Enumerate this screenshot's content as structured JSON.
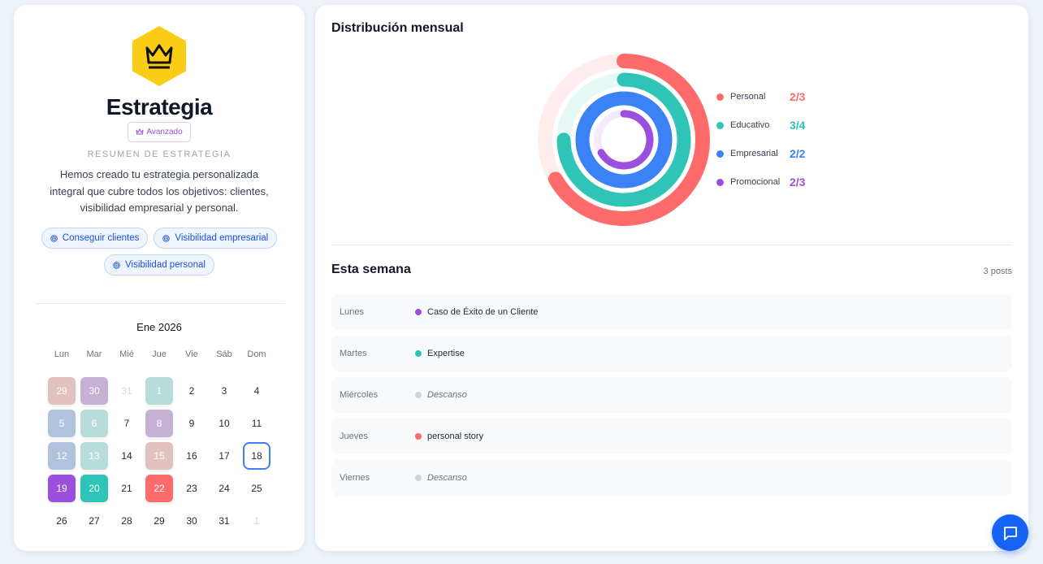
{
  "strategy": {
    "title": "Estrategia",
    "icon": "crown-icon",
    "level": "Avanzado",
    "summary_label": "RESUMEN DE ESTRATEGIA",
    "summary": "Hemos creado tu estrategia personalizada integral que cubre todos los objetivos: clientes, visibilidad empresarial y personal.",
    "goals": [
      "Conseguir clientes",
      "Visibilidad empresarial",
      "Visibilidad personal"
    ]
  },
  "calendar": {
    "month": "Ene 2026",
    "weekdays": [
      "Lun",
      "Mar",
      "Mié",
      "Jue",
      "Vie",
      "Sáb",
      "Dom"
    ],
    "weeks": [
      [
        {
          "d": "29",
          "c": "#e2c1c1"
        },
        {
          "d": "30",
          "c": "#c4b1d3"
        },
        {
          "d": "31",
          "muted": true
        },
        {
          "d": "1",
          "c": "#b8dcd8"
        },
        {
          "d": "2"
        },
        {
          "d": "3"
        },
        {
          "d": "4"
        }
      ],
      [
        {
          "d": "5",
          "c": "#b0c2dc"
        },
        {
          "d": "6",
          "c": "#b8dcd8"
        },
        {
          "d": "7"
        },
        {
          "d": "8",
          "c": "#c4b1d3"
        },
        {
          "d": "9"
        },
        {
          "d": "10"
        },
        {
          "d": "11"
        }
      ],
      [
        {
          "d": "12",
          "c": "#b0c2dc"
        },
        {
          "d": "13",
          "c": "#b8dcd8"
        },
        {
          "d": "14"
        },
        {
          "d": "15",
          "c": "#e2c1c1"
        },
        {
          "d": "16"
        },
        {
          "d": "17"
        },
        {
          "d": "18",
          "today": true
        }
      ],
      [
        {
          "d": "19",
          "c": "#9b4fdd"
        },
        {
          "d": "20",
          "c": "#2ec4b6"
        },
        {
          "d": "21"
        },
        {
          "d": "22",
          "c": "#ff6b6b"
        },
        {
          "d": "23"
        },
        {
          "d": "24"
        },
        {
          "d": "25"
        }
      ],
      [
        {
          "d": "26"
        },
        {
          "d": "27"
        },
        {
          "d": "28"
        },
        {
          "d": "29"
        },
        {
          "d": "30"
        },
        {
          "d": "31"
        },
        {
          "d": "1",
          "muted": true
        }
      ]
    ]
  },
  "distribution": {
    "title": "Distribución mensual"
  },
  "chart_data": {
    "type": "radial-bar",
    "series": [
      {
        "name": "Personal",
        "done": 2,
        "total": 3,
        "label": "2/3",
        "color": "#ff6b6b"
      },
      {
        "name": "Educativo",
        "done": 3,
        "total": 4,
        "label": "3/4",
        "color": "#2ec4b6"
      },
      {
        "name": "Empresarial",
        "done": 2,
        "total": 2,
        "label": "2/2",
        "color": "#3b82f6"
      },
      {
        "name": "Promocional",
        "done": 2,
        "total": 3,
        "label": "2/3",
        "color": "#9b4fdd"
      }
    ],
    "legend": "right"
  },
  "week": {
    "title": "Esta semana",
    "count": "3 posts",
    "rest_color": "#d1d5db",
    "days": [
      {
        "day": "Lunes",
        "post": "Caso de Éxito de un Cliente",
        "color": "#9b4fdd"
      },
      {
        "day": "Martes",
        "post": "Expertise",
        "color": "#2ec4b6"
      },
      {
        "day": "Miércoles",
        "post": "Descanso",
        "rest": true
      },
      {
        "day": "Jueves",
        "post": "personal story",
        "color": "#ff6b6b"
      },
      {
        "day": "Viernes",
        "post": "Descanso",
        "rest": true
      }
    ]
  },
  "chat": {
    "icon": "chat-icon"
  }
}
